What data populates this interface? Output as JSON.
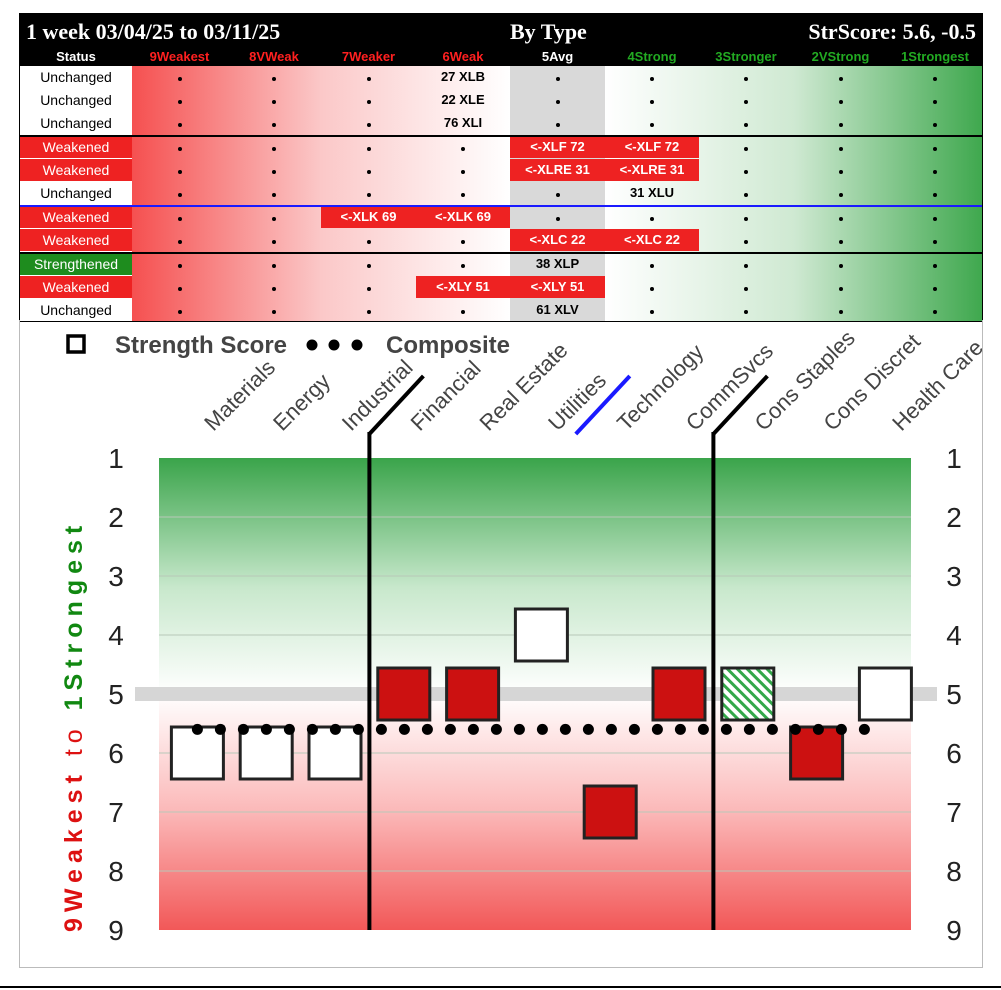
{
  "header": {
    "period": "1 week 03/04/25 to 03/11/25",
    "group": "By Type",
    "score": "StrScore: 5.6, -0.5"
  },
  "columns": [
    {
      "label": "Status",
      "color": "#ffffff"
    },
    {
      "label": "9Weakest",
      "color": "#ff2020"
    },
    {
      "label": "8VWeak",
      "color": "#ff2020"
    },
    {
      "label": "7Weaker",
      "color": "#ff2020"
    },
    {
      "label": "6Weak",
      "color": "#ff2020"
    },
    {
      "label": "5Avg",
      "color": "#ffffff"
    },
    {
      "label": "4Strong",
      "color": "#22aa22"
    },
    {
      "label": "3Stronger",
      "color": "#22aa22"
    },
    {
      "label": "2VStrong",
      "color": "#22aa22"
    },
    {
      "label": "1Strongest",
      "color": "#22aa22"
    }
  ],
  "rows": [
    {
      "status": "Unchanged",
      "cells": [
        {
          "col": 4,
          "text": "27 XLB",
          "hl": false
        }
      ]
    },
    {
      "status": "Unchanged",
      "cells": [
        {
          "col": 4,
          "text": "22 XLE",
          "hl": false
        }
      ]
    },
    {
      "status": "Unchanged",
      "cells": [
        {
          "col": 4,
          "text": "76 XLI",
          "hl": false
        }
      ]
    },
    {
      "status": "Weakened",
      "cells": [
        {
          "col": 5,
          "text": "<-XLF 72",
          "hl": true
        },
        {
          "col": 6,
          "text": "<-XLF 72",
          "hl": true
        }
      ]
    },
    {
      "status": "Weakened",
      "cells": [
        {
          "col": 5,
          "text": "<-XLRE 31",
          "hl": true
        },
        {
          "col": 6,
          "text": "<-XLRE 31",
          "hl": true
        }
      ]
    },
    {
      "status": "Unchanged",
      "cells": [
        {
          "col": 6,
          "text": "31 XLU",
          "hl": false
        }
      ]
    },
    {
      "status": "Weakened",
      "cells": [
        {
          "col": 3,
          "text": "<-XLK 69",
          "hl": true
        },
        {
          "col": 4,
          "text": "<-XLK 69",
          "hl": true
        }
      ]
    },
    {
      "status": "Weakened",
      "cells": [
        {
          "col": 5,
          "text": "<-XLC 22",
          "hl": true
        },
        {
          "col": 6,
          "text": "<-XLC 22",
          "hl": true
        }
      ]
    },
    {
      "status": "Strengthened",
      "cells": [
        {
          "col": 5,
          "text": "38 XLP",
          "hl": false
        }
      ]
    },
    {
      "status": "Weakened",
      "cells": [
        {
          "col": 4,
          "text": "<-XLY 51",
          "hl": true
        },
        {
          "col": 5,
          "text": "<-XLY 51",
          "hl": true
        }
      ]
    },
    {
      "status": "Unchanged",
      "cells": [
        {
          "col": 5,
          "text": "61 XLV",
          "hl": false
        }
      ]
    }
  ],
  "status_colors": {
    "Unchanged": "#ffffff",
    "Weakened": "#ee2222",
    "Strengthened": "#1e8c1e"
  },
  "chart_data": {
    "type": "scatter",
    "legend": {
      "marker": "Strength Score",
      "line": "Composite"
    },
    "categories": [
      "Materials",
      "Energy",
      "Industrial",
      "Financial",
      "Real Estate",
      "Utilities",
      "Technology",
      "CommSvcs",
      "Cons Staples",
      "Cons Discret",
      "Health Care"
    ],
    "strength_score": [
      6,
      6,
      6,
      5,
      5,
      4,
      7,
      5,
      5,
      6,
      5
    ],
    "marker_style": [
      "empty",
      "empty",
      "empty",
      "red",
      "red",
      "empty",
      "red",
      "red",
      "hatched-green",
      "red",
      "empty"
    ],
    "composite": 5.6,
    "average_line": 5,
    "yaxis": {
      "ticks": [
        1,
        2,
        3,
        4,
        5,
        6,
        7,
        8,
        9
      ],
      "inverted": true,
      "ylim": [
        1,
        9
      ]
    },
    "ylabel_weak": "9Weakest",
    "ylabel_to": "to",
    "ylabel_strong": "1Strongest",
    "dividers": [
      {
        "after": "Industrial",
        "color": "#000000"
      },
      {
        "after": "Utilities",
        "color": "#1a1aff"
      },
      {
        "after": "CommSvcs",
        "color": "#000000"
      }
    ]
  }
}
